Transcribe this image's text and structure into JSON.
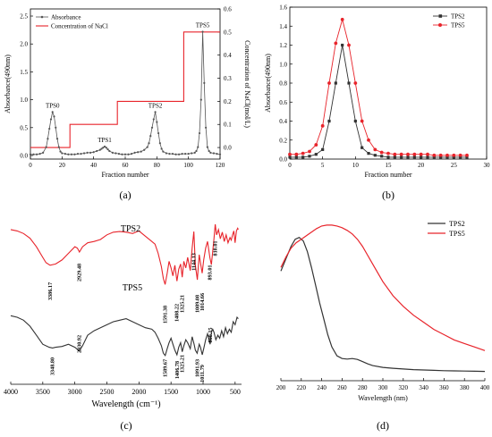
{
  "panel_labels": [
    "(a)",
    "(b)",
    "(c)",
    "(d)"
  ],
  "colors": {
    "black": "#333333",
    "red": "#e8242b",
    "gray": "#555555"
  },
  "chart_data": [
    {
      "id": "a",
      "type": "line",
      "xlabel": "Fraction number",
      "ylabel": "Absorbance(490nm)",
      "y2label": "Concentration of NaCl(mol/L)",
      "xlim": [
        0,
        120
      ],
      "ylim": [
        0,
        2.5
      ],
      "y2lim": [
        -0.05,
        0.6
      ],
      "xticks": [
        "0",
        "20",
        "40",
        "60",
        "80",
        "100",
        "120"
      ],
      "yticks": [
        "0.0",
        "0.5",
        "1.0",
        "1.5",
        "2.0",
        "2.5"
      ],
      "y2ticks": [
        "0.0",
        "0.1",
        "0.2",
        "0.3",
        "0.4",
        "0.5",
        "0.6"
      ],
      "legend": [
        "Absorbance",
        "Concentration of NaCl"
      ],
      "annotations": [
        {
          "text": "TPS0",
          "x": 14,
          "y": 0.78
        },
        {
          "text": "TPS1",
          "x": 47,
          "y": 0.16
        },
        {
          "text": "TPS2",
          "x": 79,
          "y": 0.78
        },
        {
          "text": "TPS5",
          "x": 109,
          "y": 2.22
        }
      ],
      "series": [
        {
          "name": "Absorbance",
          "color": "#555555",
          "marker": "dot",
          "x": [
            0,
            2,
            4,
            6,
            8,
            10,
            11,
            12,
            13,
            14,
            15,
            16,
            17,
            18,
            19,
            20,
            22,
            24,
            26,
            28,
            30,
            32,
            34,
            36,
            38,
            40,
            42,
            44,
            45,
            46,
            47,
            48,
            49,
            50,
            52,
            54,
            56,
            58,
            60,
            62,
            64,
            66,
            68,
            70,
            72,
            74,
            75,
            76,
            77,
            78,
            79,
            80,
            81,
            82,
            83,
            84,
            86,
            88,
            90,
            92,
            94,
            96,
            98,
            100,
            102,
            104,
            105,
            106,
            107,
            108,
            109,
            110,
            111,
            112,
            113,
            114,
            116,
            118,
            120
          ],
          "y": [
            0.02,
            0.02,
            0.02,
            0.03,
            0.05,
            0.15,
            0.3,
            0.48,
            0.65,
            0.78,
            0.7,
            0.5,
            0.3,
            0.15,
            0.07,
            0.04,
            0.03,
            0.02,
            0.02,
            0.02,
            0.03,
            0.03,
            0.04,
            0.05,
            0.05,
            0.06,
            0.08,
            0.1,
            0.12,
            0.14,
            0.16,
            0.14,
            0.11,
            0.08,
            0.05,
            0.04,
            0.03,
            0.02,
            0.02,
            0.02,
            0.03,
            0.05,
            0.06,
            0.07,
            0.1,
            0.15,
            0.22,
            0.35,
            0.5,
            0.65,
            0.78,
            0.6,
            0.4,
            0.22,
            0.12,
            0.07,
            0.04,
            0.03,
            0.03,
            0.02,
            0.02,
            0.03,
            0.03,
            0.03,
            0.04,
            0.05,
            0.08,
            0.15,
            0.4,
            1.0,
            2.22,
            1.3,
            0.5,
            0.15,
            0.08,
            0.05,
            0.04,
            0.03,
            0.02
          ]
        },
        {
          "name": "Concentration of NaCl",
          "color": "#e8242b",
          "axis": "right",
          "step_x": [
            0,
            25,
            25,
            55,
            55,
            97,
            97,
            120
          ],
          "step_y": [
            0,
            0,
            0.1,
            0.1,
            0.2,
            0.2,
            0.5,
            0.5
          ]
        }
      ]
    },
    {
      "id": "b",
      "type": "line",
      "xlabel": "Fraction number",
      "ylabel": "Absorbance(490nm)",
      "xlim": [
        0,
        30
      ],
      "ylim": [
        0,
        1.6
      ],
      "xticks": [
        "0",
        "5",
        "10",
        "15",
        "20",
        "25",
        "30"
      ],
      "yticks": [
        "0.0",
        "0.2",
        "0.4",
        "0.6",
        "0.8",
        "1.0",
        "1.2",
        "1.4",
        "1.6"
      ],
      "legend": [
        "TPS2",
        "TPS5"
      ],
      "series": [
        {
          "name": "TPS2",
          "color": "#333333",
          "marker": "square",
          "x": [
            0,
            1,
            2,
            3,
            4,
            5,
            6,
            7,
            8,
            9,
            10,
            11,
            12,
            13,
            14,
            15,
            16,
            17,
            18,
            19,
            20,
            21,
            22,
            23,
            24,
            25,
            26,
            27
          ],
          "y": [
            0.02,
            0.02,
            0.02,
            0.03,
            0.05,
            0.1,
            0.4,
            0.8,
            1.2,
            0.8,
            0.4,
            0.12,
            0.06,
            0.04,
            0.03,
            0.02,
            0.02,
            0.02,
            0.02,
            0.02,
            0.02,
            0.02,
            0.02,
            0.02,
            0.02,
            0.02,
            0.02,
            0.02
          ]
        },
        {
          "name": "TPS5",
          "color": "#e8242b",
          "marker": "circle",
          "x": [
            0,
            1,
            2,
            3,
            4,
            5,
            6,
            7,
            8,
            9,
            10,
            11,
            12,
            13,
            14,
            15,
            16,
            17,
            18,
            19,
            20,
            21,
            22,
            23,
            24,
            25,
            26,
            27
          ],
          "y": [
            0.05,
            0.05,
            0.06,
            0.08,
            0.15,
            0.35,
            0.8,
            1.22,
            1.47,
            1.2,
            0.8,
            0.4,
            0.2,
            0.1,
            0.07,
            0.06,
            0.05,
            0.05,
            0.05,
            0.05,
            0.05,
            0.05,
            0.04,
            0.04,
            0.04,
            0.04,
            0.04,
            0.04
          ]
        }
      ]
    },
    {
      "id": "c",
      "type": "line",
      "xlabel": "Wavelength (cm⁻¹)",
      "xlim": [
        4000,
        400
      ],
      "xticks": [
        "4000",
        "3500",
        "3000",
        "2500",
        "2000",
        "1500",
        "1000",
        "500"
      ],
      "series": [
        {
          "name": "TPS2",
          "color": "#e8242b",
          "x": [
            4000,
            3900,
            3800,
            3700,
            3600,
            3500,
            3450,
            3386,
            3300,
            3200,
            3100,
            3000,
            2960,
            2929,
            2880,
            2800,
            2700,
            2600,
            2500,
            2400,
            2300,
            2200,
            2100,
            2000,
            1900,
            1800,
            1750,
            1700,
            1650,
            1620,
            1591,
            1560,
            1530,
            1500,
            1470,
            1440,
            1408,
            1380,
            1350,
            1325,
            1300,
            1270,
            1240,
            1200,
            1170,
            1144,
            1120,
            1089,
            1060,
            1040,
            1014,
            990,
            960,
            930,
            893,
            870,
            850,
            830,
            810,
            790,
            760,
            730,
            700,
            670,
            640,
            610,
            580,
            560,
            540,
            520,
            500,
            480,
            460,
            450
          ],
          "y": [
            88,
            86,
            82,
            75,
            62,
            46,
            38,
            34,
            36,
            42,
            52,
            62,
            60,
            54,
            62,
            68,
            70,
            73,
            80,
            84,
            85,
            84,
            82,
            86,
            78,
            70,
            66,
            52,
            32,
            14,
            5,
            22,
            40,
            30,
            18,
            34,
            10,
            28,
            36,
            16,
            40,
            30,
            46,
            26,
            60,
            85,
            34,
            12,
            50,
            38,
            22,
            42,
            60,
            70,
            45,
            35,
            55,
            74,
            96,
            80,
            88,
            74,
            84,
            70,
            80,
            68,
            76,
            72,
            80,
            86,
            68,
            86,
            90,
            88
          ]
        },
        {
          "name": "TPS5",
          "color": "#333333",
          "x": [
            4000,
            3900,
            3800,
            3700,
            3600,
            3500,
            3400,
            3349,
            3300,
            3200,
            3100,
            3000,
            2931,
            2880,
            2800,
            2700,
            2600,
            2500,
            2400,
            2300,
            2200,
            2100,
            2000,
            1900,
            1800,
            1750,
            1700,
            1650,
            1620,
            1590,
            1560,
            1530,
            1500,
            1470,
            1440,
            1407,
            1380,
            1350,
            1325,
            1300,
            1270,
            1240,
            1200,
            1170,
            1140,
            1120,
            1092,
            1060,
            1040,
            1012,
            990,
            960,
            930,
            890,
            870,
            850,
            830,
            800,
            770,
            740,
            710,
            680,
            650,
            620,
            590,
            560,
            530,
            500,
            470,
            450
          ],
          "y": [
            58,
            56,
            52,
            44,
            32,
            20,
            16,
            15,
            16,
            17,
            20,
            16,
            11,
            18,
            32,
            38,
            42,
            46,
            50,
            52,
            54,
            50,
            46,
            42,
            40,
            36,
            28,
            18,
            8,
            5,
            14,
            22,
            28,
            20,
            12,
            6,
            16,
            22,
            10,
            18,
            26,
            22,
            14,
            30,
            20,
            12,
            8,
            20,
            16,
            6,
            14,
            26,
            34,
            20,
            36,
            40,
            36,
            26,
            32,
            28,
            38,
            30,
            42,
            34,
            40,
            36,
            50,
            46,
            56,
            54
          ]
        }
      ],
      "labels": {
        "TPS2": {
          "name": "TPS2",
          "color": "#e8242b"
        },
        "TPS5": {
          "name": "TPS5",
          "color": "#333333"
        }
      },
      "annotations_top": [
        "3386.17",
        "2929.48",
        "1591.38",
        "1408.22",
        "1325.21",
        "1144.13",
        "1089.08",
        "1014.66",
        "893.01",
        "810.01"
      ],
      "annotations_bottom": [
        "3348.80",
        "2930.92",
        "1589.67",
        "1406.78",
        "1325.21",
        "1091.93",
        "1011.79",
        "890.15"
      ]
    },
    {
      "id": "d",
      "type": "line",
      "xlabel": "Wavelength (nm)",
      "xlim": [
        200,
        400
      ],
      "xticks": [
        "200",
        "220",
        "240",
        "260",
        "280",
        "300",
        "320",
        "340",
        "360",
        "380",
        "400"
      ],
      "legend": [
        "TPS2",
        "TPS5"
      ],
      "series": [
        {
          "name": "TPS2",
          "color": "#333333",
          "x": [
            200,
            205,
            210,
            214,
            218,
            222,
            226,
            230,
            234,
            238,
            242,
            246,
            250,
            255,
            260,
            265,
            270,
            275,
            280,
            285,
            290,
            300,
            310,
            320,
            330,
            340,
            350,
            360,
            370,
            380,
            390,
            400
          ],
          "y": [
            0.58,
            0.65,
            0.72,
            0.76,
            0.77,
            0.75,
            0.69,
            0.6,
            0.5,
            0.4,
            0.31,
            0.22,
            0.15,
            0.1,
            0.085,
            0.082,
            0.085,
            0.08,
            0.068,
            0.055,
            0.045,
            0.035,
            0.03,
            0.026,
            0.022,
            0.02,
            0.018,
            0.016,
            0.015,
            0.014,
            0.013,
            0.012
          ]
        },
        {
          "name": "TPS5",
          "color": "#e8242b",
          "x": [
            200,
            205,
            210,
            215,
            220,
            225,
            230,
            235,
            240,
            245,
            250,
            255,
            260,
            265,
            270,
            275,
            280,
            285,
            290,
            295,
            300,
            310,
            320,
            330,
            340,
            350,
            360,
            370,
            380,
            390,
            400
          ],
          "y": [
            0.6,
            0.66,
            0.71,
            0.74,
            0.76,
            0.78,
            0.8,
            0.82,
            0.835,
            0.84,
            0.84,
            0.835,
            0.825,
            0.81,
            0.79,
            0.76,
            0.72,
            0.67,
            0.62,
            0.57,
            0.52,
            0.44,
            0.38,
            0.33,
            0.29,
            0.25,
            0.22,
            0.19,
            0.17,
            0.15,
            0.13
          ]
        }
      ]
    }
  ]
}
